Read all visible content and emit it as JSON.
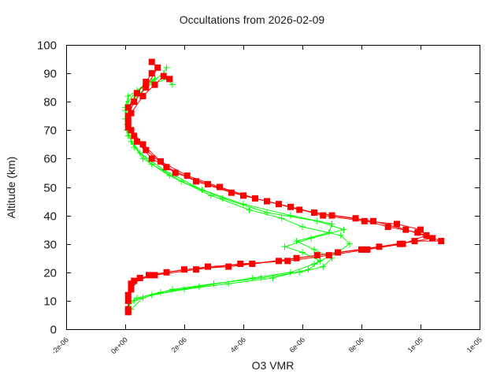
{
  "chart_data": {
    "type": "line",
    "title": "Occultations from 2026-02-09",
    "xlabel": "O3 VMR",
    "ylabel": "Altitude (km)",
    "xlim": [
      -2e-06,
      1.2e-05
    ],
    "ylim": [
      0,
      100
    ],
    "grid": false,
    "legend": "none",
    "x_ticks": [
      -2e-06,
      0,
      2e-06,
      4e-06,
      6e-06,
      8e-06,
      1e-05,
      1.2e-05
    ],
    "x_tick_labels": [
      "-2e-06",
      "0e+00",
      "2e-06",
      "4e-06",
      "6e-06",
      "8e-06",
      "1e-05",
      "1e-05"
    ],
    "y_ticks": [
      0,
      10,
      20,
      30,
      40,
      50,
      60,
      70,
      80,
      90,
      100
    ],
    "y_tick_labels": [
      "0",
      "10",
      "20",
      "30",
      "40",
      "50",
      "60",
      "70",
      "80",
      "90",
      "100"
    ],
    "series": [
      {
        "name": "profile-green-1",
        "color": "#00ff00",
        "marker": "plus",
        "x": [
          1e-07,
          1e-07,
          4e-07,
          1.2e-06,
          2.5e-06,
          4.3e-06,
          5.6e-06,
          6.4e-06,
          7.2e-06,
          7.6e-06,
          7.3e-06,
          6e-06,
          5.3e-06,
          4.2e-06,
          2.9e-06,
          1.5e-06,
          6e-07,
          2e-07,
          5e-08,
          0.0,
          1e-07,
          6e-07,
          1.4e-06,
          1.6e-06
        ],
        "y": [
          6,
          9,
          11,
          13,
          15,
          18,
          20,
          23,
          27,
          30,
          33,
          36,
          39,
          42,
          47,
          54,
          60,
          66,
          72,
          78,
          82,
          85,
          88,
          86
        ]
      },
      {
        "name": "profile-green-2",
        "color": "#00ff00",
        "marker": "plus",
        "x": [
          1e-07,
          3e-07,
          9e-07,
          2e-06,
          3.5e-06,
          5e-06,
          6.2e-06,
          6.6e-06,
          6e-06,
          5.4e-06,
          6.3e-06,
          7.4e-06,
          6.5e-06,
          4.8e-06,
          3.3e-06,
          1.9e-06,
          9e-07,
          3e-07,
          5e-08,
          0.0,
          3e-07,
          9e-07,
          1.3e-06,
          1.4e-06
        ],
        "y": [
          8,
          10,
          12,
          14,
          16,
          18,
          21,
          24,
          27,
          29,
          32,
          35,
          38,
          41,
          46,
          52,
          58,
          64,
          70,
          77,
          81,
          87,
          90,
          92
        ]
      },
      {
        "name": "profile-green-3",
        "color": "#00ff00",
        "marker": "plus",
        "x": [
          2e-07,
          6e-07,
          1.6e-06,
          3e-06,
          4.6e-06,
          5.9e-06,
          6.7e-06,
          7e-06,
          6.4e-06,
          5.8e-06,
          6.9e-06,
          7e-06,
          5.6e-06,
          4e-06,
          2.6e-06,
          1.3e-06,
          5e-07,
          1e-07,
          0.0,
          1e-07,
          4e-07,
          1e-06
        ],
        "y": [
          7,
          11,
          14,
          16,
          18,
          20,
          22,
          25,
          28,
          31,
          34,
          37,
          40,
          44,
          49,
          56,
          62,
          68,
          74,
          80,
          84,
          88
        ]
      },
      {
        "name": "profile-red-1",
        "color": "#ff0000",
        "marker": "square",
        "x": [
          1e-07,
          1e-07,
          2e-07,
          8e-07,
          2e-06,
          3.5e-06,
          5.2e-06,
          6.5e-06,
          8e-06,
          9.3e-06,
          1.04e-05,
          9.5e-06,
          8.4e-06,
          7e-06,
          5.9e-06,
          4.8e-06,
          3.6e-06,
          2.4e-06,
          1.4e-06,
          7e-07,
          3e-07,
          1e-07,
          1e-07,
          4e-07,
          7e-07,
          9e-07
        ],
        "y": [
          6,
          12,
          16,
          19,
          21,
          22,
          24,
          26,
          28,
          30,
          32,
          35,
          38,
          40,
          42,
          45,
          48,
          52,
          57,
          63,
          68,
          73,
          78,
          83,
          87,
          90
        ]
      },
      {
        "name": "profile-red-2",
        "color": "#ff0000",
        "marker": "square",
        "x": [
          1e-07,
          2e-07,
          5e-07,
          1.4e-06,
          2.8e-06,
          4.3e-06,
          5.8e-06,
          7.2e-06,
          8.6e-06,
          9.8e-06,
          1.07e-05,
          9.9e-06,
          8.9e-06,
          7.8e-06,
          6.4e-06,
          5.2e-06,
          4e-06,
          2.8e-06,
          1.7e-06,
          9e-07,
          4e-07,
          1e-07,
          2e-07,
          6e-07,
          1e-06,
          1.3e-06,
          1.5e-06
        ],
        "y": [
          7,
          14,
          18,
          20,
          22,
          23,
          25,
          27,
          29,
          31,
          31,
          34,
          36,
          39,
          41,
          44,
          47,
          51,
          55,
          60,
          66,
          71,
          76,
          82,
          86,
          89,
          88
        ]
      },
      {
        "name": "profile-red-3",
        "color": "#ff0000",
        "marker": "square",
        "x": [
          1e-07,
          3e-07,
          1e-06,
          2.4e-06,
          3.9e-06,
          5.5e-06,
          6.9e-06,
          8.2e-06,
          9.4e-06,
          1.02e-05,
          1e-05,
          9.2e-06,
          8.1e-06,
          6.7e-06,
          5.6e-06,
          4.4e-06,
          3.2e-06,
          2.1e-06,
          1.2e-06,
          6e-07,
          2e-07,
          1e-07,
          3e-07,
          7e-07,
          1.1e-06,
          9e-07
        ],
        "y": [
          10,
          17,
          19,
          21,
          23,
          24,
          26,
          28,
          30,
          33,
          35,
          37,
          38,
          40,
          43,
          46,
          50,
          54,
          59,
          65,
          70,
          75,
          80,
          85,
          92,
          94
        ]
      }
    ]
  }
}
